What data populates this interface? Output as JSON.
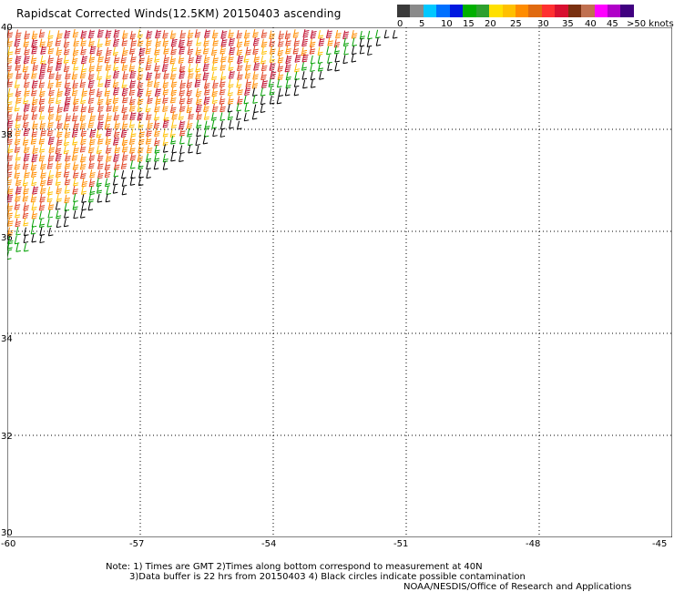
{
  "title": "Rapidscat Corrected Winds(12.5KM) 20150403 ascending",
  "legend": {
    "colors": [
      "#3a3a3a",
      "#8a8a8a",
      "#00c8ff",
      "#0070ff",
      "#0018e0",
      "#00b000",
      "#2ea02e",
      "#ffe000",
      "#ffc000",
      "#ff8c00",
      "#e06a10",
      "#ff3030",
      "#d81030",
      "#7a3010",
      "#c07050",
      "#ff00ff",
      "#b000c8",
      "#400080"
    ],
    "labels": [
      "0",
      "5",
      "10",
      "15",
      "20",
      "25",
      "30",
      "35",
      "40",
      "45",
      ">50 knots"
    ]
  },
  "map": {
    "lat_labels": [
      "40",
      "38",
      "36",
      "34",
      "32",
      "30"
    ],
    "lon_labels": [
      "-60",
      "-57",
      "-54",
      "-51",
      "-48",
      "-45"
    ],
    "lat_range": [
      30,
      40
    ],
    "lon_range": [
      -60,
      -45
    ],
    "swath_edge": [
      {
        "lon": -60,
        "lat": 35.5
      },
      {
        "lon": -51,
        "lat": 40
      }
    ]
  },
  "notes": {
    "line1": "Note: 1) Times are GMT 2)Times along bottom correspond to measurement at 40N",
    "line2": "3)Data buffer is 22 hrs from 20150403 4) Black circles indicate possible contamination",
    "credit": "NOAA/NESDIS/Office of Research and Applications"
  }
}
